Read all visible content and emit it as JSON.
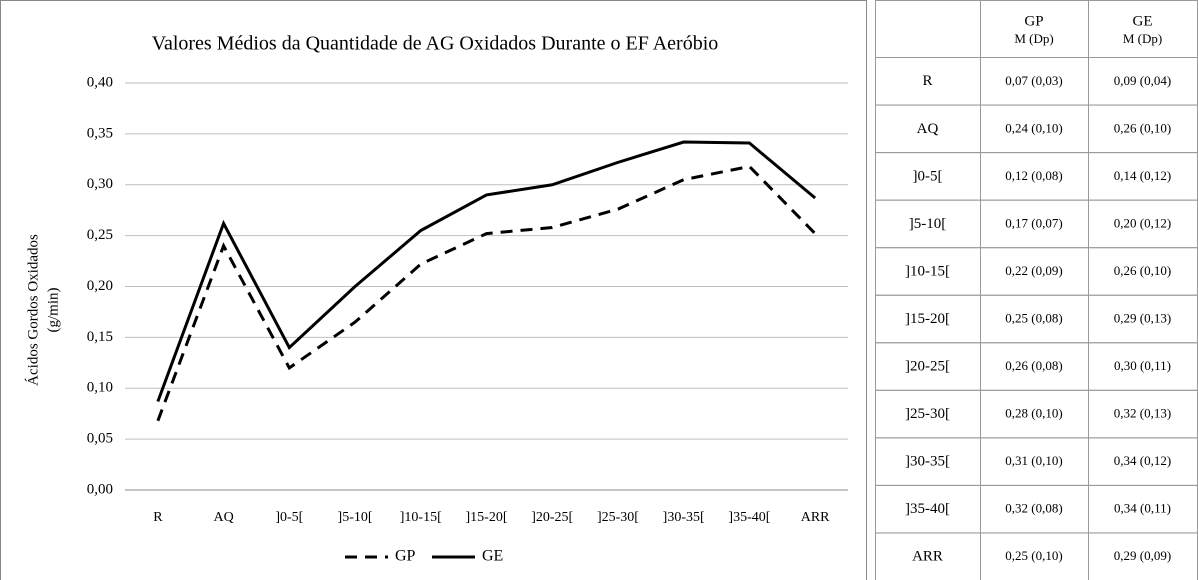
{
  "chart_data": {
    "type": "line",
    "title": "Valores Médios da Quantidade de AG Oxidados Durante o EF Aeróbio",
    "ylabel": [
      "Ácidos Gordos Oxidados",
      "(g/min)"
    ],
    "categories": [
      "R",
      "AQ",
      "]0-5[",
      "]5-10[",
      "]10-15[",
      "]15-20[",
      "]20-25[",
      "]25-30[",
      "]30-35[",
      "]35-40[",
      "ARR"
    ],
    "series": [
      {
        "name": "GP",
        "color": "#000000",
        "dashed": true,
        "values": [
          0.068,
          0.24,
          0.12,
          0.165,
          0.222,
          0.252,
          0.258,
          0.276,
          0.305,
          0.318,
          0.252
        ]
      },
      {
        "name": "GE",
        "color": "#000000",
        "dashed": false,
        "values": [
          0.087,
          0.262,
          0.14,
          0.2,
          0.255,
          0.29,
          0.3,
          0.322,
          0.342,
          0.341,
          0.287
        ]
      }
    ],
    "ylim": [
      0,
      0.4
    ],
    "yticks": [
      {
        "value": 0,
        "label": "0,00"
      },
      {
        "value": 0.05,
        "label": "0,05"
      },
      {
        "value": 0.1,
        "label": "0,10"
      },
      {
        "value": 0.15,
        "label": "0,15"
      },
      {
        "value": 0.2,
        "label": "0,20"
      },
      {
        "value": 0.25,
        "label": "0,25"
      },
      {
        "value": 0.3,
        "label": "0,30"
      },
      {
        "value": 0.35,
        "label": "0,35"
      },
      {
        "value": 0.4,
        "label": "0,40"
      }
    ],
    "grid": true,
    "legend": "bottom"
  },
  "table": {
    "columns": [
      {
        "name": "GP",
        "sub": "M (Dp)"
      },
      {
        "name": "GE",
        "sub": "M (Dp)"
      }
    ],
    "rows": [
      [
        "R",
        "0,07 (0,03)",
        "0,09 (0,04)"
      ],
      [
        "AQ",
        "0,24 (0,10)",
        "0,26 (0,10)"
      ],
      [
        "]0-5[",
        "0,12 (0,08)",
        "0,14 (0,12)"
      ],
      [
        "]5-10[",
        "0,17 (0,07)",
        "0,20 (0,12)"
      ],
      [
        "]10-15[",
        "0,22 (0,09)",
        "0,26 (0,10)"
      ],
      [
        "]15-20[",
        "0,25 (0,08)",
        "0,29 (0,13)"
      ],
      [
        "]20-25[",
        "0,26 (0,08)",
        "0,30 (0,11)"
      ],
      [
        "]25-30[",
        "0,28 (0,10)",
        "0,32 (0,13)"
      ],
      [
        "]30-35[",
        "0,31 (0,10)",
        "0,34 (0,12)"
      ],
      [
        "]35-40[",
        "0,32 (0,08)",
        "0,34 (0,11)"
      ],
      [
        "ARR",
        "0,25 (0,10)",
        "0,29 (0,09)"
      ]
    ]
  }
}
